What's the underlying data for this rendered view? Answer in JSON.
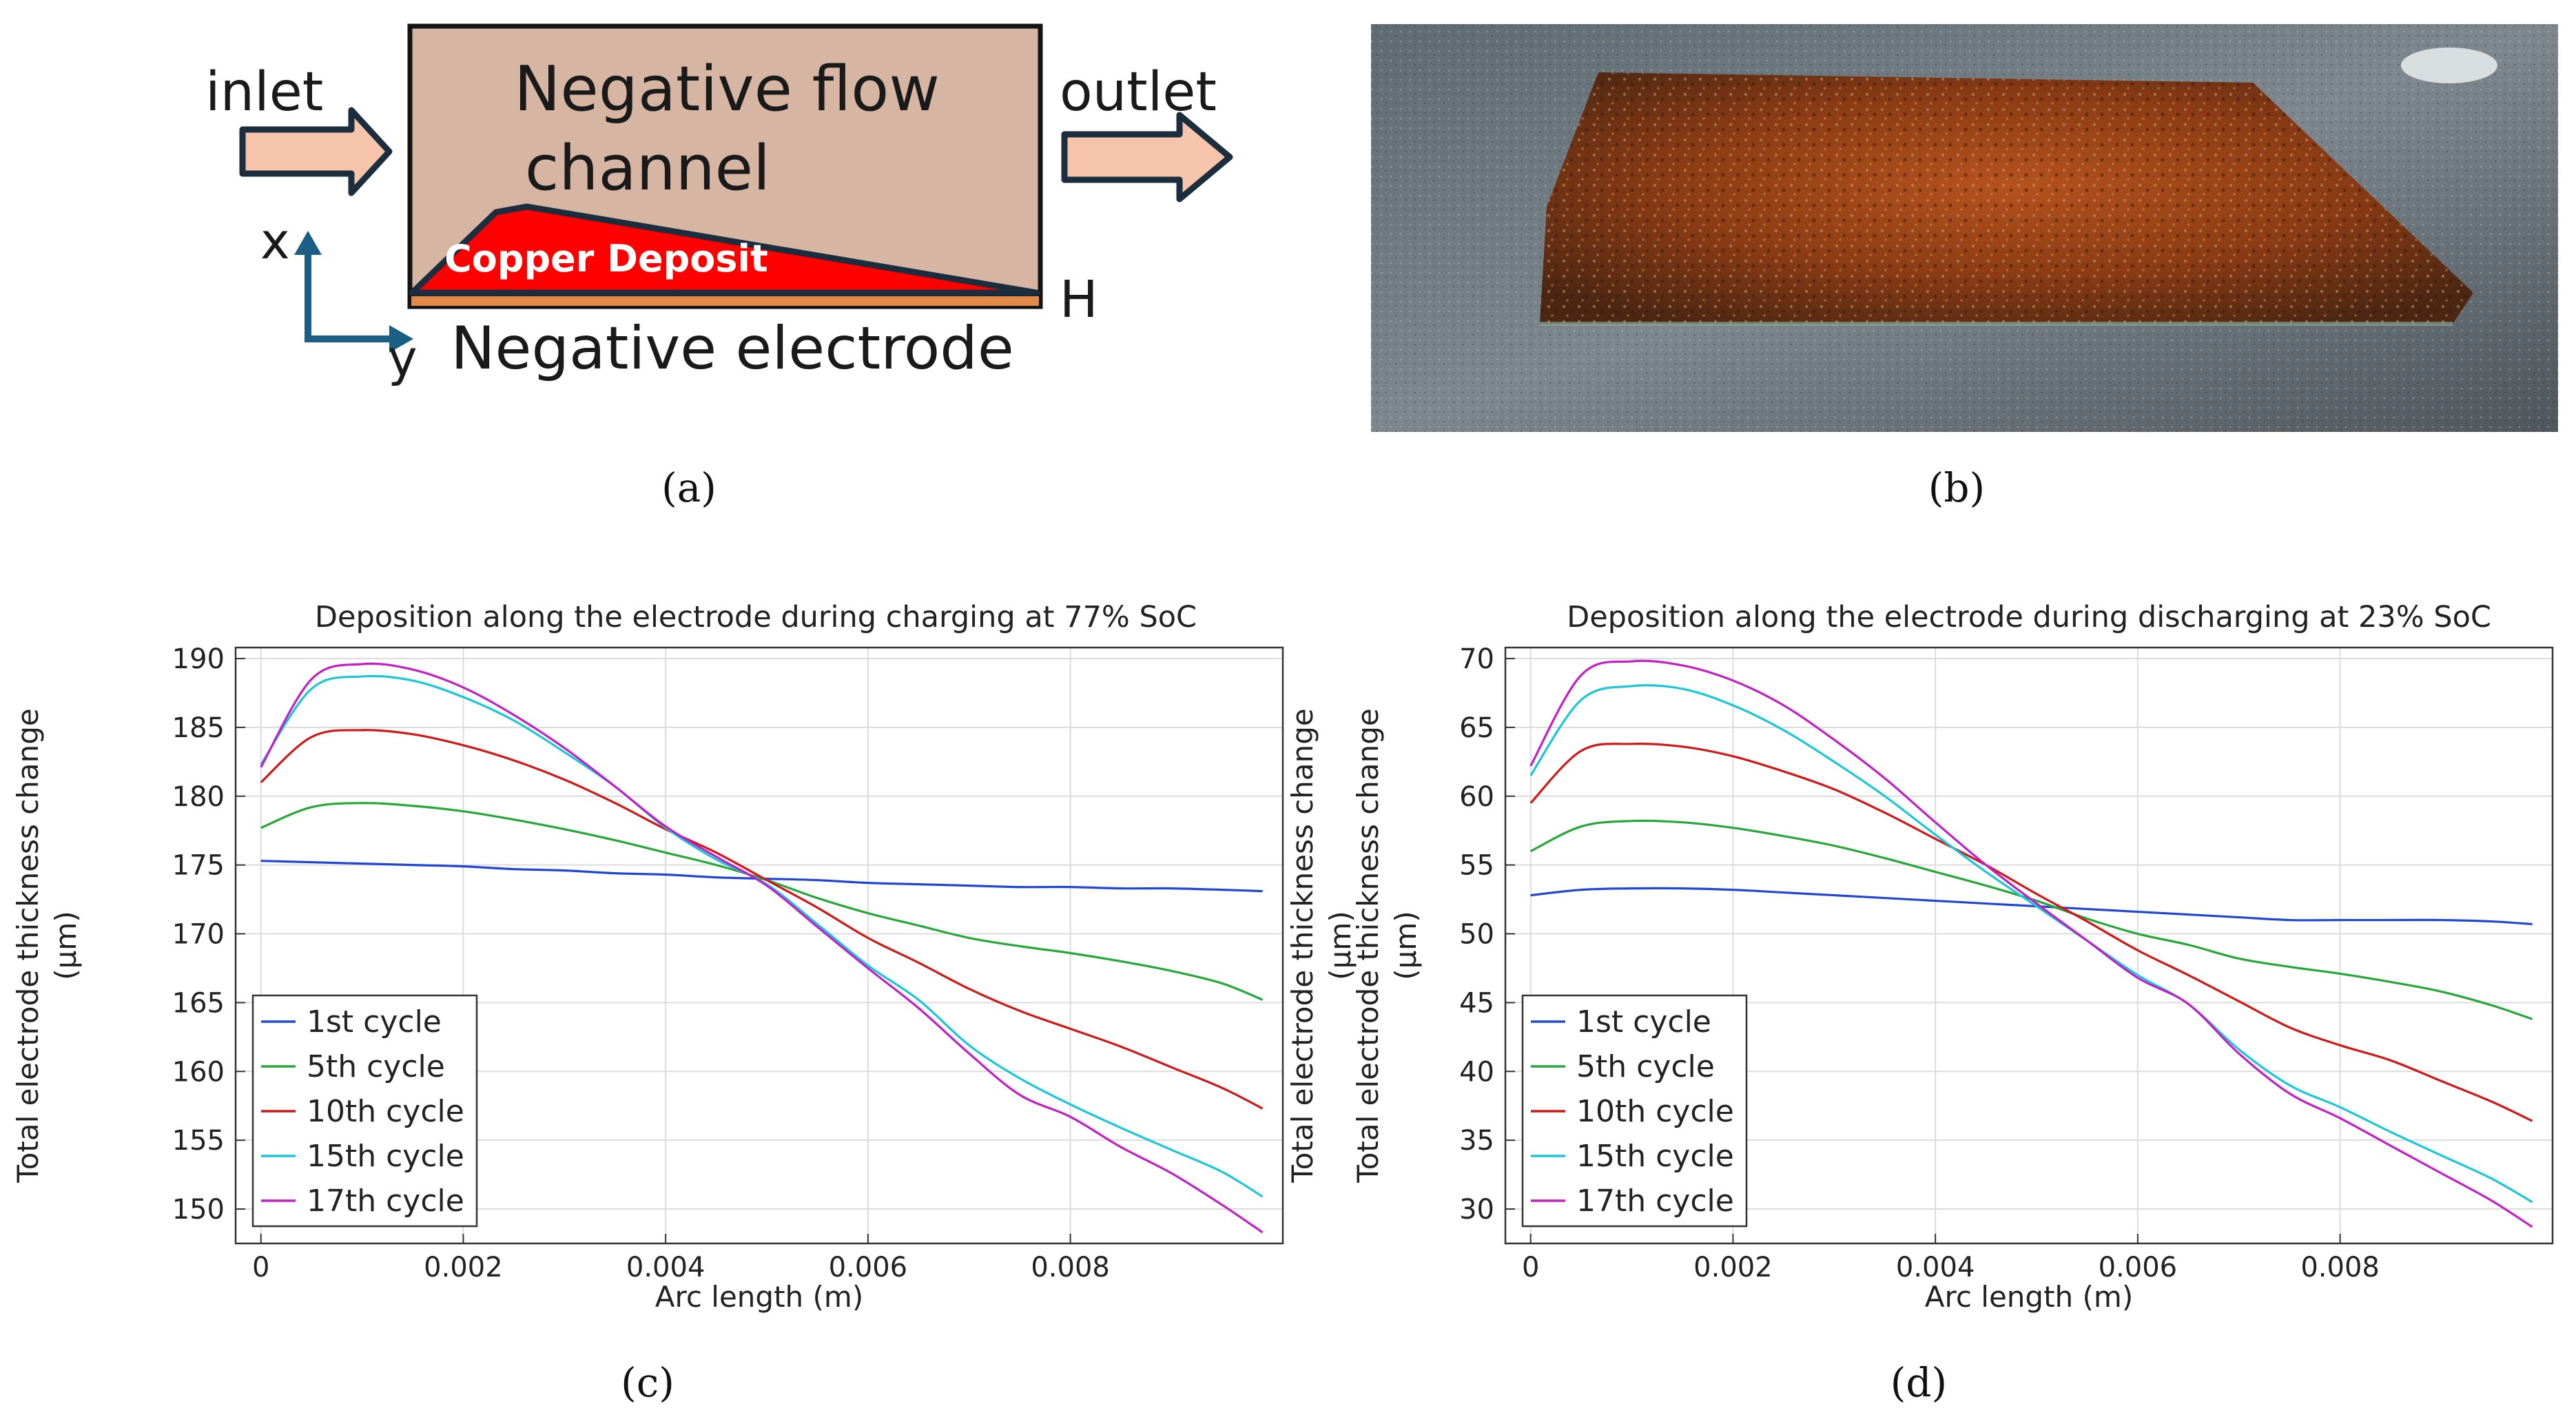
{
  "panel_a": {
    "inlet": "inlet",
    "outlet": "outlet",
    "channel_line1": "Negative flow",
    "channel_line2": "channel",
    "deposit": "Copper Deposit",
    "x_axis": "x",
    "y_axis": "y",
    "h_label": "H",
    "electrode": "Negative electrode",
    "colors": {
      "channel": "#d6b6a3",
      "deposit": "#ff0000",
      "arrow": "#f5c4ab",
      "axis": "#1c5f85"
    }
  },
  "captions": {
    "a": "(a)",
    "b": "(b)",
    "c": "(c)",
    "d": "(d)"
  },
  "chart_data": [
    {
      "type": "line",
      "title": "Deposition along the electrode during charging at 77% SoC",
      "xlabel": "Arc length (m)",
      "ylabel_line1": "Total electrode thickness change",
      "ylabel_line2": "(μm)",
      "xlim": [
        -0.00025,
        0.0101
      ],
      "ylim": [
        147.5,
        190.8
      ],
      "xticks": [
        0,
        0.002,
        0.004,
        0.006,
        0.008
      ],
      "xtick_labels": [
        "0",
        "0.002",
        "0.004",
        "0.006",
        "0.008"
      ],
      "yticks": [
        150,
        155,
        160,
        165,
        170,
        175,
        180,
        185,
        190
      ],
      "ytick_labels": [
        "150",
        "155",
        "160",
        "165",
        "170",
        "175",
        "180",
        "185",
        "190"
      ],
      "grid": true,
      "legend_position": "bottom-left",
      "x": [
        0,
        0.0005,
        0.001,
        0.0015,
        0.002,
        0.0025,
        0.003,
        0.0035,
        0.004,
        0.0045,
        0.005,
        0.0055,
        0.006,
        0.0065,
        0.007,
        0.0075,
        0.008,
        0.0085,
        0.009,
        0.0095,
        0.0099
      ],
      "series": [
        {
          "name": "1st cycle",
          "color": "#2046d6",
          "values": [
            175.3,
            175.2,
            175.1,
            175.0,
            174.9,
            174.7,
            174.6,
            174.4,
            174.3,
            174.1,
            174.0,
            173.9,
            173.7,
            173.6,
            173.5,
            173.4,
            173.4,
            173.3,
            173.3,
            173.2,
            173.1
          ]
        },
        {
          "name": "5th cycle",
          "color": "#25a838",
          "values": [
            177.7,
            179.2,
            179.5,
            179.3,
            178.9,
            178.3,
            177.6,
            176.8,
            175.9,
            175.0,
            173.9,
            172.6,
            171.5,
            170.6,
            169.7,
            169.1,
            168.6,
            168.0,
            167.3,
            166.4,
            165.2
          ]
        },
        {
          "name": "10th cycle",
          "color": "#d21717",
          "values": [
            181.0,
            184.3,
            184.8,
            184.5,
            183.7,
            182.6,
            181.2,
            179.5,
            177.6,
            175.9,
            173.9,
            171.9,
            169.7,
            167.9,
            166.0,
            164.4,
            163.1,
            161.8,
            160.3,
            158.8,
            157.3
          ]
        },
        {
          "name": "15th cycle",
          "color": "#19c8d8",
          "values": [
            182.3,
            187.8,
            188.7,
            188.4,
            187.2,
            185.5,
            183.2,
            180.7,
            177.7,
            175.4,
            173.6,
            170.7,
            167.7,
            165.2,
            161.9,
            159.5,
            157.6,
            155.9,
            154.3,
            152.7,
            150.9
          ]
        },
        {
          "name": "17th cycle",
          "color": "#c41ec7",
          "values": [
            182.1,
            188.5,
            189.6,
            189.2,
            187.9,
            185.9,
            183.5,
            180.7,
            177.8,
            175.6,
            173.5,
            170.5,
            167.5,
            164.6,
            161.3,
            158.3,
            156.7,
            154.5,
            152.6,
            150.3,
            148.3
          ]
        }
      ]
    },
    {
      "type": "line",
      "title": "Deposition along the electrode during discharging at 23% SoC",
      "xlabel": "Arc length (m)",
      "ylabel_line1": "Total electrode thickness change",
      "ylabel_line2": "(μm)",
      "xlim": [
        -0.00025,
        0.0101
      ],
      "ylim": [
        27.5,
        70.8
      ],
      "xticks": [
        0,
        0.002,
        0.004,
        0.006,
        0.008
      ],
      "xtick_labels": [
        "0",
        "0.002",
        "0.004",
        "0.006",
        "0.008"
      ],
      "yticks": [
        30,
        35,
        40,
        45,
        50,
        55,
        60,
        65,
        70
      ],
      "ytick_labels": [
        "30",
        "35",
        "40",
        "45",
        "50",
        "55",
        "60",
        "65",
        "70"
      ],
      "grid": true,
      "legend_position": "bottom-left",
      "x": [
        0,
        0.0005,
        0.001,
        0.0015,
        0.002,
        0.0025,
        0.003,
        0.0035,
        0.004,
        0.0045,
        0.005,
        0.0055,
        0.006,
        0.0065,
        0.007,
        0.0075,
        0.008,
        0.0085,
        0.009,
        0.0095,
        0.0099
      ],
      "series": [
        {
          "name": "1st cycle",
          "color": "#2046d6",
          "values": [
            52.8,
            53.2,
            53.3,
            53.3,
            53.2,
            53.0,
            52.8,
            52.6,
            52.4,
            52.2,
            52.0,
            51.8,
            51.6,
            51.4,
            51.2,
            51.0,
            51.0,
            51.0,
            51.0,
            50.9,
            50.7
          ]
        },
        {
          "name": "5th cycle",
          "color": "#25a838",
          "values": [
            56.0,
            57.8,
            58.2,
            58.1,
            57.7,
            57.1,
            56.4,
            55.5,
            54.5,
            53.5,
            52.4,
            51.1,
            50.0,
            49.2,
            48.2,
            47.6,
            47.1,
            46.5,
            45.8,
            44.8,
            43.8
          ]
        },
        {
          "name": "10th cycle",
          "color": "#d21717",
          "values": [
            59.5,
            63.3,
            63.8,
            63.6,
            62.9,
            61.8,
            60.5,
            58.8,
            56.9,
            55.0,
            52.9,
            50.9,
            48.8,
            47.0,
            45.1,
            43.2,
            41.9,
            40.8,
            39.3,
            37.8,
            36.4
          ]
        },
        {
          "name": "15th cycle",
          "color": "#19c8d8",
          "values": [
            61.5,
            67.0,
            68.0,
            67.8,
            66.6,
            64.8,
            62.5,
            60.0,
            57.2,
            54.5,
            52.0,
            49.5,
            47.0,
            44.9,
            41.6,
            39.0,
            37.4,
            35.6,
            33.9,
            32.2,
            30.5
          ]
        },
        {
          "name": "17th cycle",
          "color": "#c41ec7",
          "values": [
            62.2,
            68.8,
            69.8,
            69.5,
            68.4,
            66.6,
            64.1,
            61.3,
            58.1,
            55.0,
            52.2,
            49.5,
            46.8,
            44.9,
            41.3,
            38.4,
            36.6,
            34.6,
            32.6,
            30.6,
            28.7
          ]
        }
      ]
    }
  ]
}
